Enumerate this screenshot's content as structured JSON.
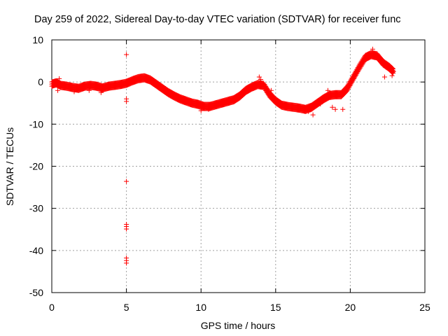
{
  "chart_data": {
    "type": "scatter",
    "title": "Day 259 of 2022, Sidereal Day-to-day VTEC variation (SDTVAR) for receiver func",
    "xlabel": "GPS time / hours",
    "ylabel": "SDTVAR / TECUs",
    "xlim": [
      0,
      25
    ],
    "ylim": [
      -50,
      10
    ],
    "xticks": [
      0,
      5,
      10,
      15,
      20,
      25
    ],
    "yticks": [
      10,
      0,
      -10,
      -20,
      -30,
      -40,
      -50
    ],
    "grid": true,
    "marker": "+",
    "series": [
      {
        "name": "SDTVAR",
        "color": "#ff0000",
        "trace": [
          [
            0.0,
            -0.5
          ],
          [
            0.3,
            -0.2
          ],
          [
            0.6,
            -0.8
          ],
          [
            1.0,
            -1.0
          ],
          [
            1.4,
            -1.3
          ],
          [
            1.8,
            -1.5
          ],
          [
            2.2,
            -1.0
          ],
          [
            2.6,
            -0.8
          ],
          [
            3.0,
            -1.0
          ],
          [
            3.4,
            -1.4
          ],
          [
            3.8,
            -1.0
          ],
          [
            4.2,
            -0.8
          ],
          [
            4.6,
            -0.6
          ],
          [
            5.0,
            -0.3
          ],
          [
            5.4,
            0.3
          ],
          [
            5.8,
            0.8
          ],
          [
            6.2,
            1.0
          ],
          [
            6.6,
            0.5
          ],
          [
            7.0,
            -0.5
          ],
          [
            7.4,
            -1.5
          ],
          [
            7.8,
            -2.5
          ],
          [
            8.2,
            -3.3
          ],
          [
            8.6,
            -4.0
          ],
          [
            9.0,
            -4.5
          ],
          [
            9.4,
            -5.0
          ],
          [
            9.8,
            -5.3
          ],
          [
            10.2,
            -5.8
          ],
          [
            10.6,
            -5.8
          ],
          [
            11.0,
            -5.4
          ],
          [
            11.4,
            -5.0
          ],
          [
            11.8,
            -4.6
          ],
          [
            12.2,
            -4.2
          ],
          [
            12.6,
            -3.3
          ],
          [
            13.0,
            -2.0
          ],
          [
            13.4,
            -1.2
          ],
          [
            13.8,
            -0.6
          ],
          [
            14.2,
            -0.8
          ],
          [
            14.6,
            -3.0
          ],
          [
            15.0,
            -4.5
          ],
          [
            15.4,
            -5.5
          ],
          [
            15.8,
            -5.8
          ],
          [
            16.2,
            -6.0
          ],
          [
            16.6,
            -6.2
          ],
          [
            17.0,
            -6.5
          ],
          [
            17.4,
            -6.0
          ],
          [
            17.8,
            -5.0
          ],
          [
            18.2,
            -4.0
          ],
          [
            18.6,
            -3.2
          ],
          [
            19.0,
            -3.0
          ],
          [
            19.4,
            -3.0
          ],
          [
            19.8,
            -1.5
          ],
          [
            20.2,
            1.0
          ],
          [
            20.6,
            3.5
          ],
          [
            21.0,
            5.8
          ],
          [
            21.4,
            6.5
          ],
          [
            21.8,
            6.2
          ],
          [
            22.2,
            4.5
          ],
          [
            22.6,
            3.5
          ],
          [
            22.9,
            2.5
          ]
        ],
        "extra_points": [
          [
            0.4,
            -2.0
          ],
          [
            0.5,
            0.8
          ],
          [
            1.5,
            -2.3
          ],
          [
            2.5,
            -2.0
          ],
          [
            3.3,
            -2.5
          ],
          [
            5.0,
            6.5
          ],
          [
            5.0,
            -4.0
          ],
          [
            5.0,
            -4.6
          ],
          [
            5.0,
            -23.6
          ],
          [
            5.0,
            -33.8
          ],
          [
            5.0,
            -34.3
          ],
          [
            5.0,
            -34.9
          ],
          [
            5.0,
            -41.8
          ],
          [
            5.0,
            -42.4
          ],
          [
            5.0,
            -43.0
          ],
          [
            10.0,
            -6.8
          ],
          [
            10.5,
            -6.5
          ],
          [
            13.9,
            1.2
          ],
          [
            14.0,
            0.6
          ],
          [
            14.7,
            -2.0
          ],
          [
            17.2,
            -7.0
          ],
          [
            17.5,
            -7.8
          ],
          [
            18.0,
            -5.2
          ],
          [
            18.5,
            -2.0
          ],
          [
            19.0,
            -6.5
          ],
          [
            19.5,
            -6.5
          ],
          [
            18.8,
            -6.0
          ],
          [
            22.3,
            1.2
          ],
          [
            22.8,
            1.5
          ],
          [
            21.5,
            7.8
          ]
        ]
      }
    ]
  }
}
